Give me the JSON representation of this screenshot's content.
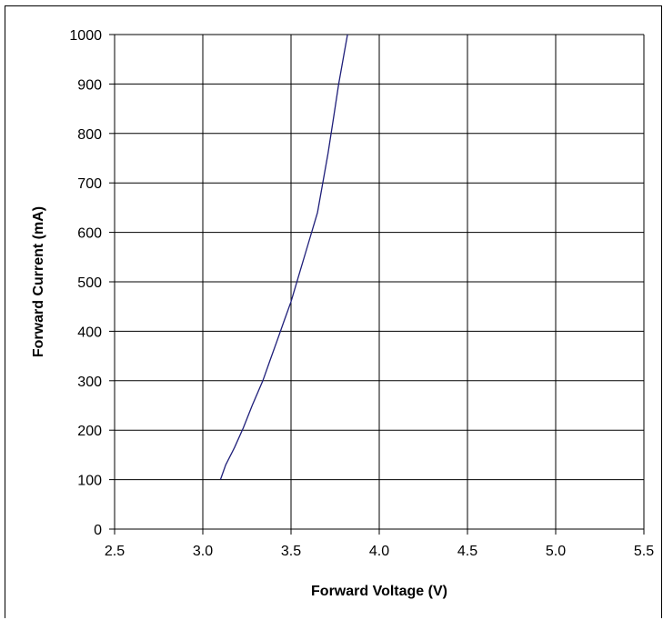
{
  "chart_data": {
    "type": "line",
    "title": "",
    "xlabel": "Forward Voltage (V)",
    "ylabel": "Forward Current (mA)",
    "xlim": [
      2.5,
      5.5
    ],
    "ylim": [
      0,
      1000
    ],
    "grid": true,
    "legend": "none",
    "x_ticks": [
      "2.5",
      "3.0",
      "3.5",
      "4.0",
      "4.5",
      "5.0",
      "5.5"
    ],
    "y_ticks": [
      "0",
      "100",
      "200",
      "300",
      "400",
      "500",
      "600",
      "700",
      "800",
      "900",
      "1000"
    ],
    "series": [
      {
        "color": "#1f1f7a",
        "x": [
          3.1,
          3.13,
          3.18,
          3.23,
          3.28,
          3.34,
          3.38,
          3.42,
          3.46,
          3.5,
          3.55,
          3.6,
          3.65,
          3.68,
          3.71,
          3.74,
          3.77,
          3.8,
          3.82
        ],
        "y": [
          100,
          130,
          165,
          205,
          250,
          300,
          340,
          380,
          420,
          460,
          520,
          580,
          640,
          700,
          760,
          830,
          900,
          960,
          1000
        ]
      }
    ]
  }
}
